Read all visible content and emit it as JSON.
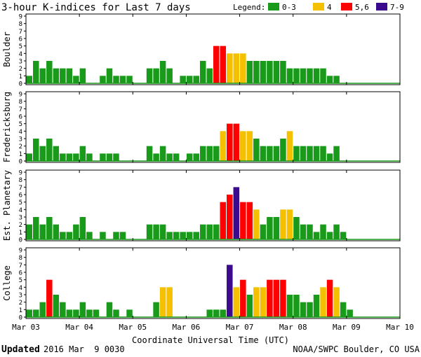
{
  "chart_data": {
    "type": "bar",
    "title": "3-hour K-indices for Last 7 days",
    "legend_title": "Legend:",
    "legend": [
      {
        "label": "0-3",
        "color": "#1a9a1a"
      },
      {
        "label": "4",
        "color": "#f5c000"
      },
      {
        "label": "5,6",
        "color": "#ff0000"
      },
      {
        "label": "7-9",
        "color": "#3c0a8c"
      }
    ],
    "ylim": [
      0,
      9
    ],
    "yticks": [
      "0",
      "1",
      "2",
      "3",
      "4",
      "5",
      "6",
      "7",
      "8",
      "9"
    ],
    "xlabel": "Coordinate Universal Time (UTC)",
    "xticks": [
      "Mar 03",
      "Mar 04",
      "Mar 05",
      "Mar 06",
      "Mar 07",
      "Mar 08",
      "Mar 09",
      "Mar 10"
    ],
    "interval_hours": 3,
    "series": [
      {
        "name": "Boulder",
        "values": [
          1,
          3,
          2,
          3,
          2,
          2,
          2,
          1,
          2,
          0,
          0,
          1,
          2,
          1,
          1,
          1,
          0,
          0,
          2,
          2,
          3,
          2,
          0,
          1,
          1,
          1,
          3,
          2,
          5,
          5,
          4,
          4,
          4,
          3,
          3,
          3,
          3,
          3,
          3,
          2,
          2,
          2,
          2,
          2,
          2,
          1,
          1,
          0,
          0,
          0,
          0,
          0,
          0,
          0,
          0,
          0
        ]
      },
      {
        "name": "Fredericksburg",
        "values": [
          1,
          3,
          2,
          3,
          2,
          1,
          1,
          1,
          2,
          1,
          0,
          1,
          1,
          1,
          0,
          0,
          0,
          0,
          2,
          1,
          2,
          1,
          1,
          0,
          1,
          1,
          2,
          2,
          2,
          4,
          5,
          5,
          4,
          4,
          3,
          2,
          2,
          2,
          3,
          4,
          2,
          2,
          2,
          2,
          2,
          1,
          2,
          0,
          0,
          0,
          0,
          0,
          0,
          0,
          0,
          0
        ]
      },
      {
        "name": "Est. Planetary",
        "values": [
          2,
          3,
          2,
          3,
          2,
          1,
          1,
          2,
          3,
          1,
          0,
          1,
          0,
          1,
          1,
          0,
          0,
          0,
          2,
          2,
          2,
          1,
          1,
          1,
          1,
          1,
          2,
          2,
          2,
          5,
          6,
          7,
          5,
          5,
          4,
          2,
          3,
          3,
          4,
          4,
          3,
          2,
          2,
          1,
          2,
          1,
          2,
          1,
          0,
          0,
          0,
          0,
          0,
          0,
          0,
          0
        ]
      },
      {
        "name": "College",
        "values": [
          1,
          1,
          2,
          5,
          3,
          2,
          1,
          1,
          2,
          1,
          1,
          0,
          2,
          1,
          0,
          1,
          0,
          0,
          0,
          2,
          4,
          4,
          0,
          0,
          0,
          0,
          0,
          1,
          1,
          1,
          7,
          4,
          5,
          3,
          4,
          4,
          5,
          5,
          5,
          3,
          3,
          2,
          2,
          3,
          4,
          5,
          4,
          2,
          1,
          0,
          0,
          0,
          0,
          0,
          0,
          0
        ]
      }
    ]
  },
  "footer": {
    "updated_label": "Updated",
    "updated_value": "2016 Mar  9 0030",
    "source": "NOAA/SWPC Boulder, CO USA"
  }
}
